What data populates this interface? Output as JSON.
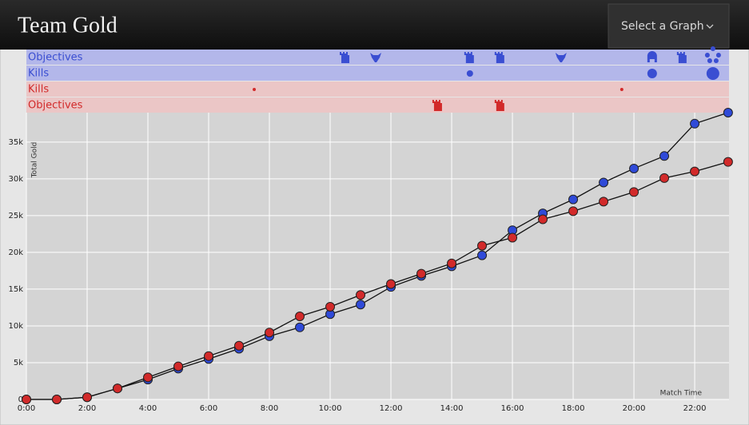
{
  "header": {
    "title": "Team Gold",
    "dropdown": "Select a Graph"
  },
  "chart_data": {
    "type": "line",
    "x": [
      0,
      1,
      2,
      3,
      4,
      5,
      6,
      7,
      8,
      9,
      10,
      11,
      12,
      13,
      14,
      15,
      16,
      17,
      18,
      19,
      20,
      21,
      22,
      23.1
    ],
    "series": [
      {
        "color": "#2f4ad8",
        "values": [
          0,
          0,
          300,
          1500,
          2700,
          4200,
          5500,
          6900,
          8600,
          9800,
          11600,
          12900,
          15300,
          16800,
          18100,
          19600,
          23000,
          25300,
          27200,
          29500,
          31400,
          33100,
          37500,
          39000
        ]
      },
      {
        "color": "#d22a2a",
        "values": [
          0,
          0,
          300,
          1500,
          3000,
          4500,
          5900,
          7300,
          9100,
          11300,
          12600,
          14200,
          15700,
          17100,
          18500,
          20900,
          22000,
          24500,
          25600,
          26900,
          28200,
          30100,
          31000,
          32300
        ]
      }
    ],
    "xlim": [
      0,
      23.13
    ],
    "xticks": [
      {
        "value": 0,
        "label": "0:00"
      },
      {
        "value": 2,
        "label": "2:00"
      },
      {
        "value": 4,
        "label": "4:00"
      },
      {
        "value": 6,
        "label": "6:00"
      },
      {
        "value": 8,
        "label": "8:00"
      },
      {
        "value": 10,
        "label": "10:00"
      },
      {
        "value": 12,
        "label": "12:00"
      },
      {
        "value": 14,
        "label": "14:00"
      },
      {
        "value": 16,
        "label": "16:00"
      },
      {
        "value": 18,
        "label": "18:00"
      },
      {
        "value": 20,
        "label": "20:00"
      },
      {
        "value": 22,
        "label": "22:00"
      }
    ],
    "ylim": [
      0,
      39000
    ],
    "yticks": [
      0,
      {
        "value": 5000,
        "label": "5k"
      },
      {
        "value": 10000,
        "label": "10k"
      },
      {
        "value": 15000,
        "label": "15k"
      },
      {
        "value": 20000,
        "label": "20k"
      },
      {
        "value": 25000,
        "label": "25k"
      },
      {
        "value": 30000,
        "label": "30k"
      },
      {
        "value": 35000,
        "label": "35k"
      }
    ],
    "grid": true,
    "xlabel": "Match Time",
    "ylabel": "Total Gold",
    "event_rows": [
      {
        "label": "Objectives",
        "color": "#3a4ed2",
        "events": [
          {
            "time": 10.5,
            "icon": "tower"
          },
          {
            "time": 11.5,
            "icon": "dragon"
          },
          {
            "time": 14.6,
            "icon": "tower"
          },
          {
            "time": 15.6,
            "icon": "tower"
          },
          {
            "time": 17.6,
            "icon": "dragon"
          },
          {
            "time": 20.6,
            "icon": "baron"
          },
          {
            "time": 21.6,
            "icon": "tower"
          },
          {
            "time": 22.6,
            "icon": "elder"
          }
        ]
      },
      {
        "label": "Kills",
        "color": "#3a4ed2",
        "events": [
          {
            "time": 14.6,
            "count": 2
          },
          {
            "time": 20.6,
            "count": 3
          },
          {
            "time": 22.6,
            "count": 4
          }
        ]
      },
      {
        "label": "Kills",
        "color": "#d22a2a",
        "events": [
          {
            "time": 7.5,
            "count": 1
          },
          {
            "time": 19.6,
            "count": 1
          }
        ]
      },
      {
        "label": "Objectives",
        "color": "#d22a2a",
        "events": [
          {
            "time": 13.55,
            "icon": "tower"
          },
          {
            "time": 15.6,
            "icon": "tower"
          }
        ]
      }
    ]
  }
}
